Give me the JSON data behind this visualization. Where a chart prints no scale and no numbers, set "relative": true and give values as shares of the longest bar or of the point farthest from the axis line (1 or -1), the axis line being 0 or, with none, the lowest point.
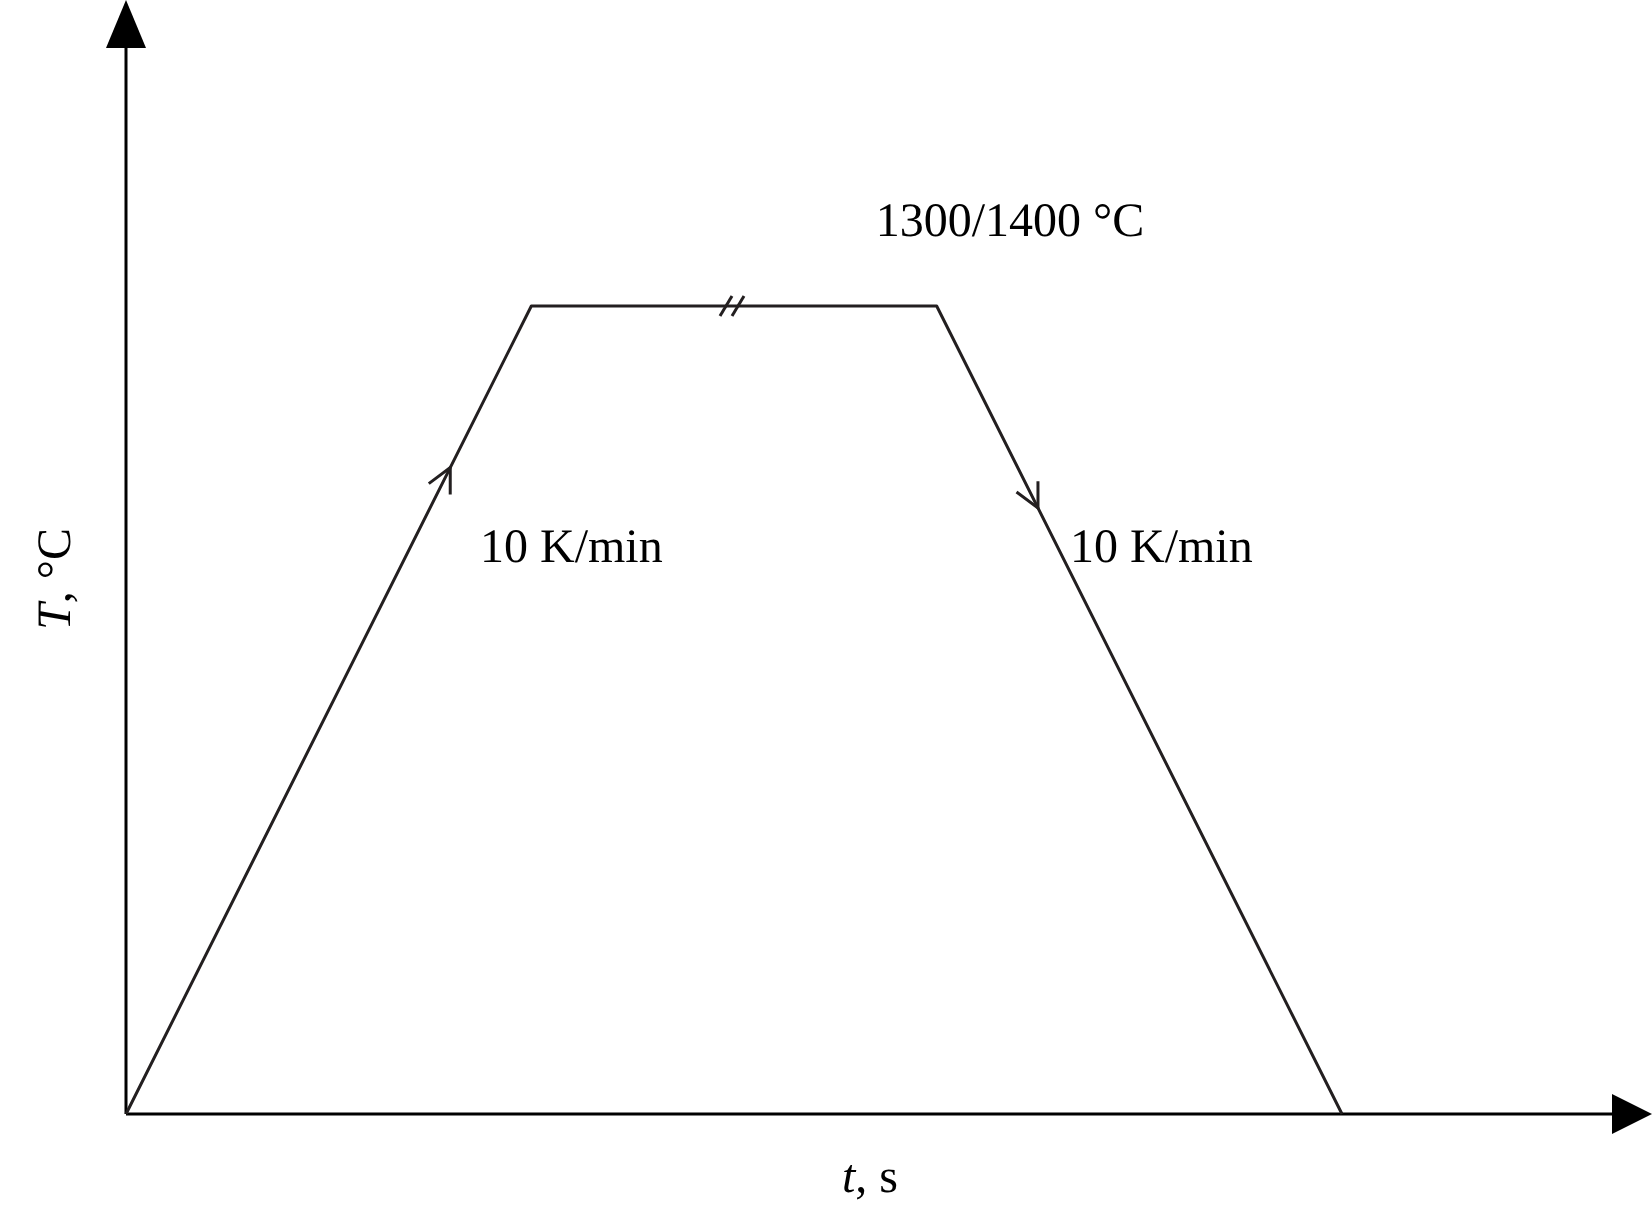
{
  "chart_data": {
    "type": "line",
    "relative": true,
    "xlabel": "t, s",
    "ylabel": "T, °C",
    "categories": [
      null,
      null,
      null,
      null
    ],
    "series": [
      {
        "color": "#231f20",
        "values": [
          0,
          1,
          1,
          0
        ]
      }
    ],
    "marker": "none",
    "line_style": "solid",
    "annotations": [
      "1300/1400 °C",
      "10 K/min",
      "10 K/min"
    ]
  }
}
